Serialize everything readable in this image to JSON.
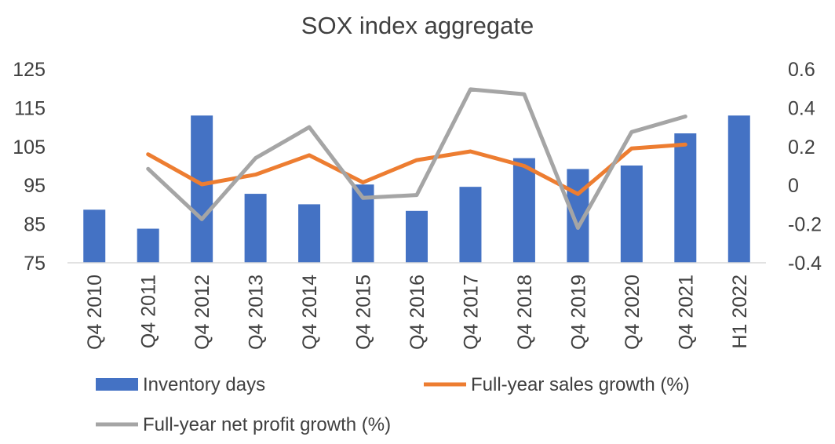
{
  "chart_data": {
    "type": "bar",
    "title": "SOX index aggregate",
    "categories": [
      "Q4 2010",
      "Q4 2011",
      "Q4 2012",
      "Q4 2013",
      "Q4 2014",
      "Q4 2015",
      "Q4 2016",
      "Q4 2017",
      "Q4 2018",
      "Q4 2019",
      "Q4 2020",
      "Q4 2021",
      "H1 2022"
    ],
    "y_left": {
      "range": [
        75,
        125
      ],
      "ticks": [
        125,
        115,
        105,
        95,
        85,
        75
      ],
      "tick_labels": [
        "125",
        "115",
        "105",
        "95",
        "85",
        "75"
      ]
    },
    "y_right": {
      "range": [
        -0.4,
        0.6
      ],
      "ticks": [
        0.6,
        0.4,
        0.2,
        0,
        -0.2,
        -0.4
      ],
      "tick_labels": [
        "0.6",
        "0.4",
        "0.2",
        "0",
        "-0.2",
        "-0.4"
      ]
    },
    "grid": false,
    "legend_position": "bottom",
    "series": [
      {
        "name": "Inventory days",
        "kind": "bar",
        "axis": "left",
        "color": "#4472C4",
        "values": [
          88.7,
          83.8,
          113,
          92.8,
          90.1,
          95.2,
          88.4,
          94.6,
          102,
          99.2,
          100.1,
          108.4,
          113
        ]
      },
      {
        "name": "Full-year sales growth (%)",
        "kind": "line",
        "axis": "right",
        "color": "#ED7D31",
        "values": [
          null,
          0.16,
          0.005,
          0.055,
          0.155,
          0.015,
          0.13,
          0.175,
          0.1,
          -0.045,
          0.19,
          0.21,
          null
        ]
      },
      {
        "name": "Full-year net profit growth (%)",
        "kind": "line",
        "axis": "right",
        "color": "#A5A5A5",
        "values": [
          null,
          0.085,
          -0.175,
          0.14,
          0.3,
          -0.065,
          -0.05,
          0.495,
          0.47,
          -0.22,
          0.275,
          0.355,
          null
        ]
      }
    ]
  }
}
